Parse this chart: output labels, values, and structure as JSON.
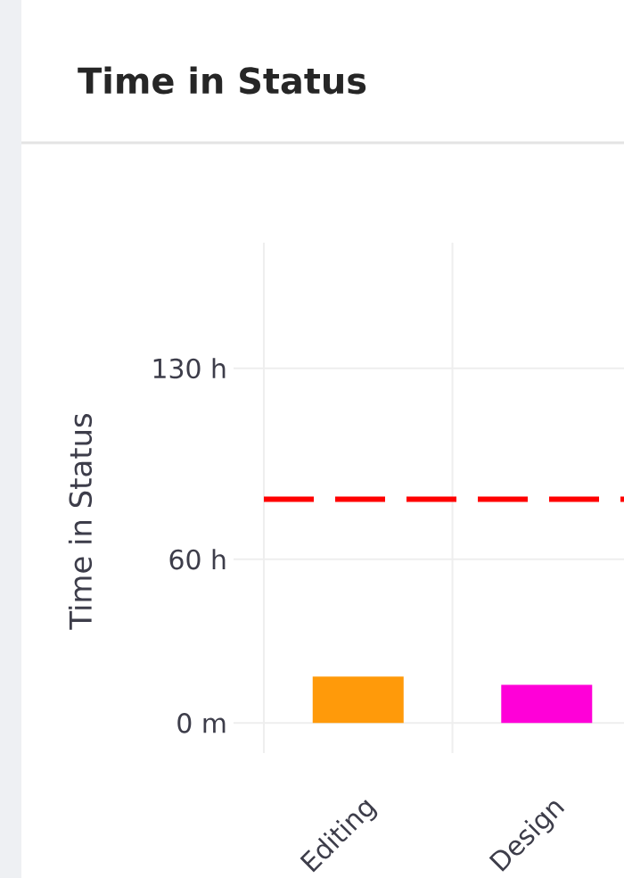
{
  "chart_data": {
    "type": "bar",
    "title": "Time in Status",
    "ylabel": "Time in Status",
    "categories": [
      "Editing",
      "Design"
    ],
    "values": [
      17,
      14
    ],
    "colors": [
      "#ff9a0a",
      "#ff00d8"
    ],
    "ylim": [
      -11,
      176
    ],
    "yticks": [
      {
        "value": 0,
        "label": "0 m"
      },
      {
        "value": 60,
        "label": "60 h"
      },
      {
        "value": 130,
        "label": "130 h"
      }
    ],
    "grid": true,
    "ref_lines": [
      {
        "axis": "y",
        "value": 82,
        "color": "#ff0000",
        "line_style": "dashed"
      }
    ]
  }
}
